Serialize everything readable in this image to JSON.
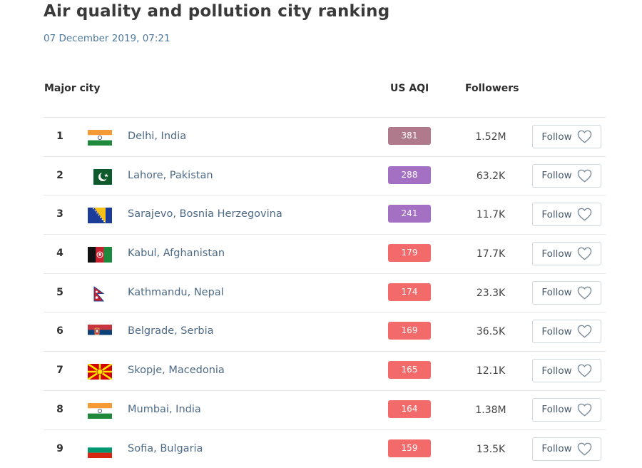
{
  "page": {
    "title": "Air quality and pollution city ranking",
    "timestamp": "07 December 2019, 07:21"
  },
  "table": {
    "headers": {
      "city": "Major city",
      "aqi": "US AQI",
      "followers": "Followers"
    },
    "rows": [
      {
        "rank": "1",
        "city": "Delhi, India",
        "country": "india",
        "aqi": "381",
        "aqi_color": "#b07a8d",
        "followers": "1.52M",
        "follow_label": "Follow"
      },
      {
        "rank": "2",
        "city": "Lahore, Pakistan",
        "country": "pakistan",
        "aqi": "288",
        "aqi_color": "#a470c4",
        "followers": "63.2K",
        "follow_label": "Follow"
      },
      {
        "rank": "3",
        "city": "Sarajevo, Bosnia Herzegovina",
        "country": "bosnia",
        "aqi": "241",
        "aqi_color": "#a470c4",
        "followers": "11.7K",
        "follow_label": "Follow"
      },
      {
        "rank": "4",
        "city": "Kabul, Afghanistan",
        "country": "afghanistan",
        "aqi": "179",
        "aqi_color": "#f26a6a",
        "followers": "17.7K",
        "follow_label": "Follow"
      },
      {
        "rank": "5",
        "city": "Kathmandu, Nepal",
        "country": "nepal",
        "aqi": "174",
        "aqi_color": "#f26a6a",
        "followers": "23.3K",
        "follow_label": "Follow"
      },
      {
        "rank": "6",
        "city": "Belgrade, Serbia",
        "country": "serbia",
        "aqi": "169",
        "aqi_color": "#f26a6a",
        "followers": "36.5K",
        "follow_label": "Follow"
      },
      {
        "rank": "7",
        "city": "Skopje, Macedonia",
        "country": "macedonia",
        "aqi": "165",
        "aqi_color": "#f26a6a",
        "followers": "12.1K",
        "follow_label": "Follow"
      },
      {
        "rank": "8",
        "city": "Mumbai, India",
        "country": "india",
        "aqi": "164",
        "aqi_color": "#f26a6a",
        "followers": "1.38M",
        "follow_label": "Follow"
      },
      {
        "rank": "9",
        "city": "Sofia, Bulgaria",
        "country": "bulgaria",
        "aqi": "159",
        "aqi_color": "#f26a6a",
        "followers": "13.5K",
        "follow_label": "Follow"
      }
    ]
  },
  "icons": {
    "follow": "heart-outline-icon"
  }
}
